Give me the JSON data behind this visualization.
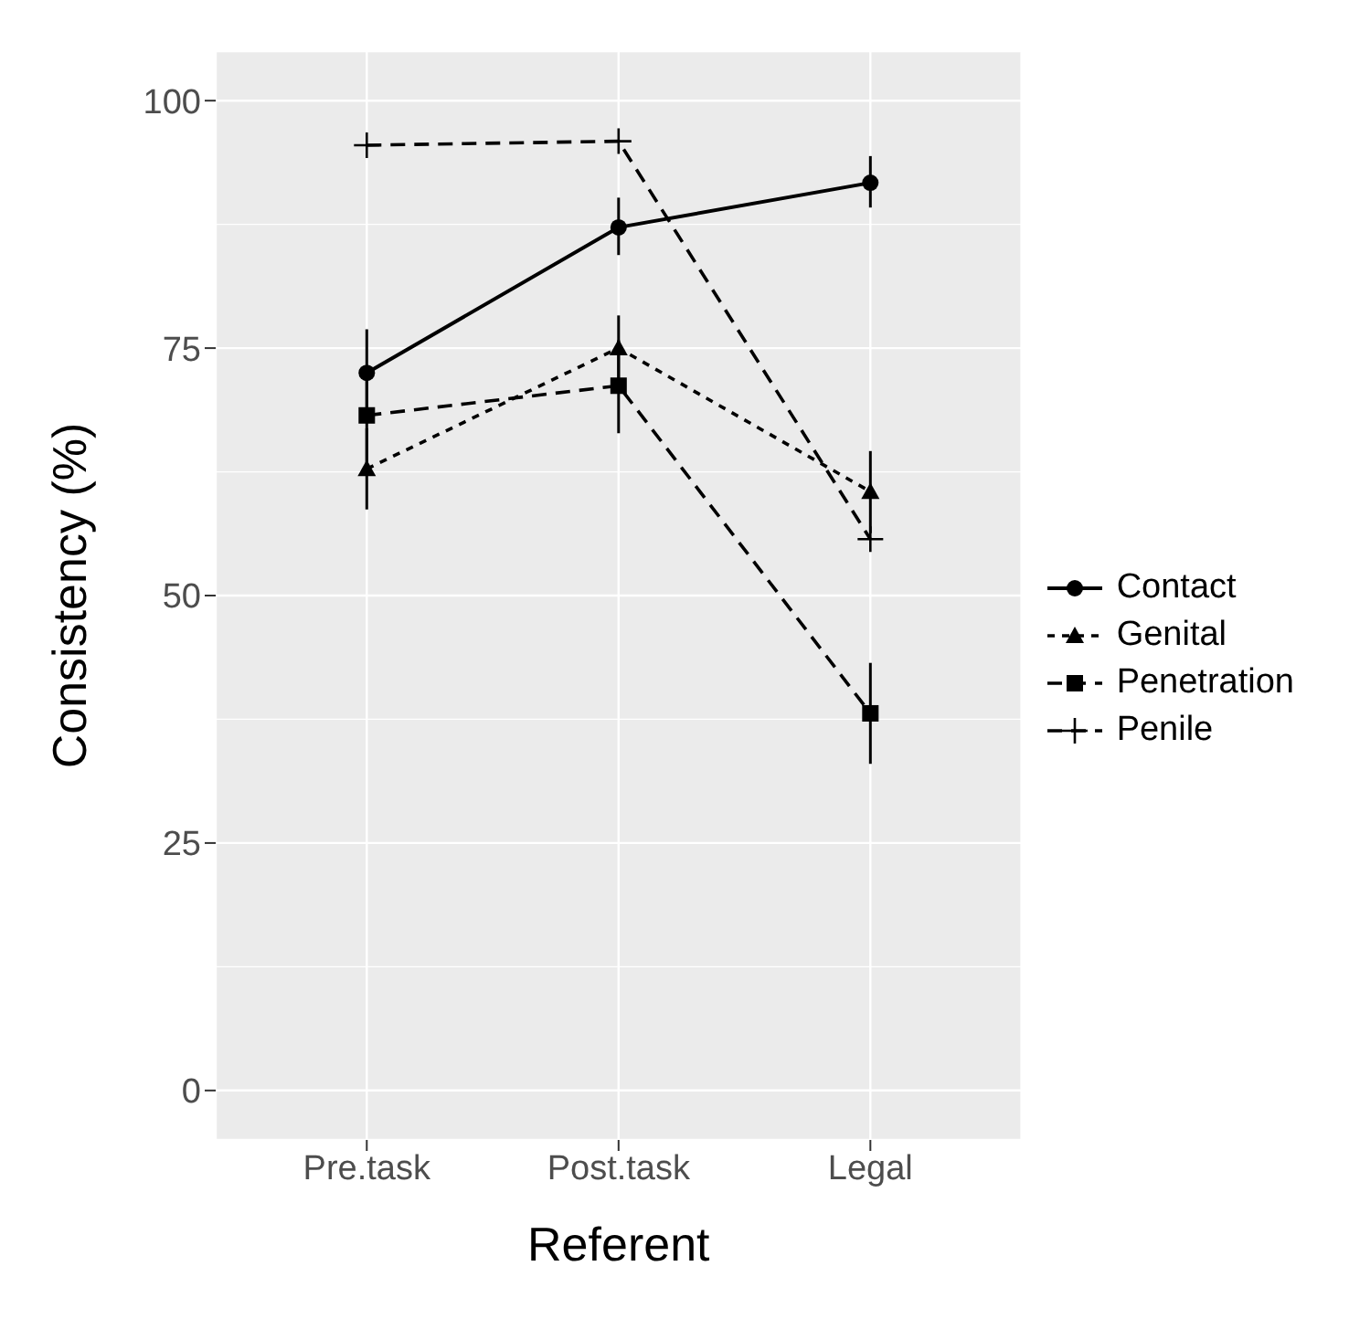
{
  "chart_data": {
    "type": "line",
    "xlabel": "Referent",
    "ylabel": "Consistency (%)",
    "categories": [
      "Pre.task",
      "Post.task",
      "Legal"
    ],
    "ylim": [
      -5,
      105
    ],
    "yticks": [
      0,
      25,
      50,
      75,
      100
    ],
    "grid": true,
    "legend": "right",
    "series": [
      {
        "name": "Contact",
        "color": "#000000",
        "marker": "circle",
        "line_style": "solid",
        "values": [
          72.5,
          87.2,
          91.7
        ],
        "errors": [
          [
            68.5,
            76.9
          ],
          [
            84.4,
            90.2
          ],
          [
            89.2,
            94.4
          ]
        ]
      },
      {
        "name": "Genital",
        "color": "#000000",
        "marker": "triangle",
        "line_style": "dotted",
        "values": [
          62.8,
          75.0,
          60.5
        ],
        "errors": [
          [
            58.7,
            66.9
          ],
          [
            71.6,
            78.3
          ],
          [
            56.3,
            64.6
          ]
        ]
      },
      {
        "name": "Penetration",
        "color": "#000000",
        "marker": "square",
        "line_style": "dashed",
        "values": [
          68.2,
          71.2,
          38.1
        ],
        "errors": [
          [
            63.3,
            73.2
          ],
          [
            66.4,
            75.8
          ],
          [
            33.0,
            43.2
          ]
        ]
      },
      {
        "name": "Penile",
        "color": "#000000",
        "marker": "cross",
        "line_style": "dashed",
        "values": [
          95.5,
          95.9,
          55.7
        ]
      }
    ]
  }
}
